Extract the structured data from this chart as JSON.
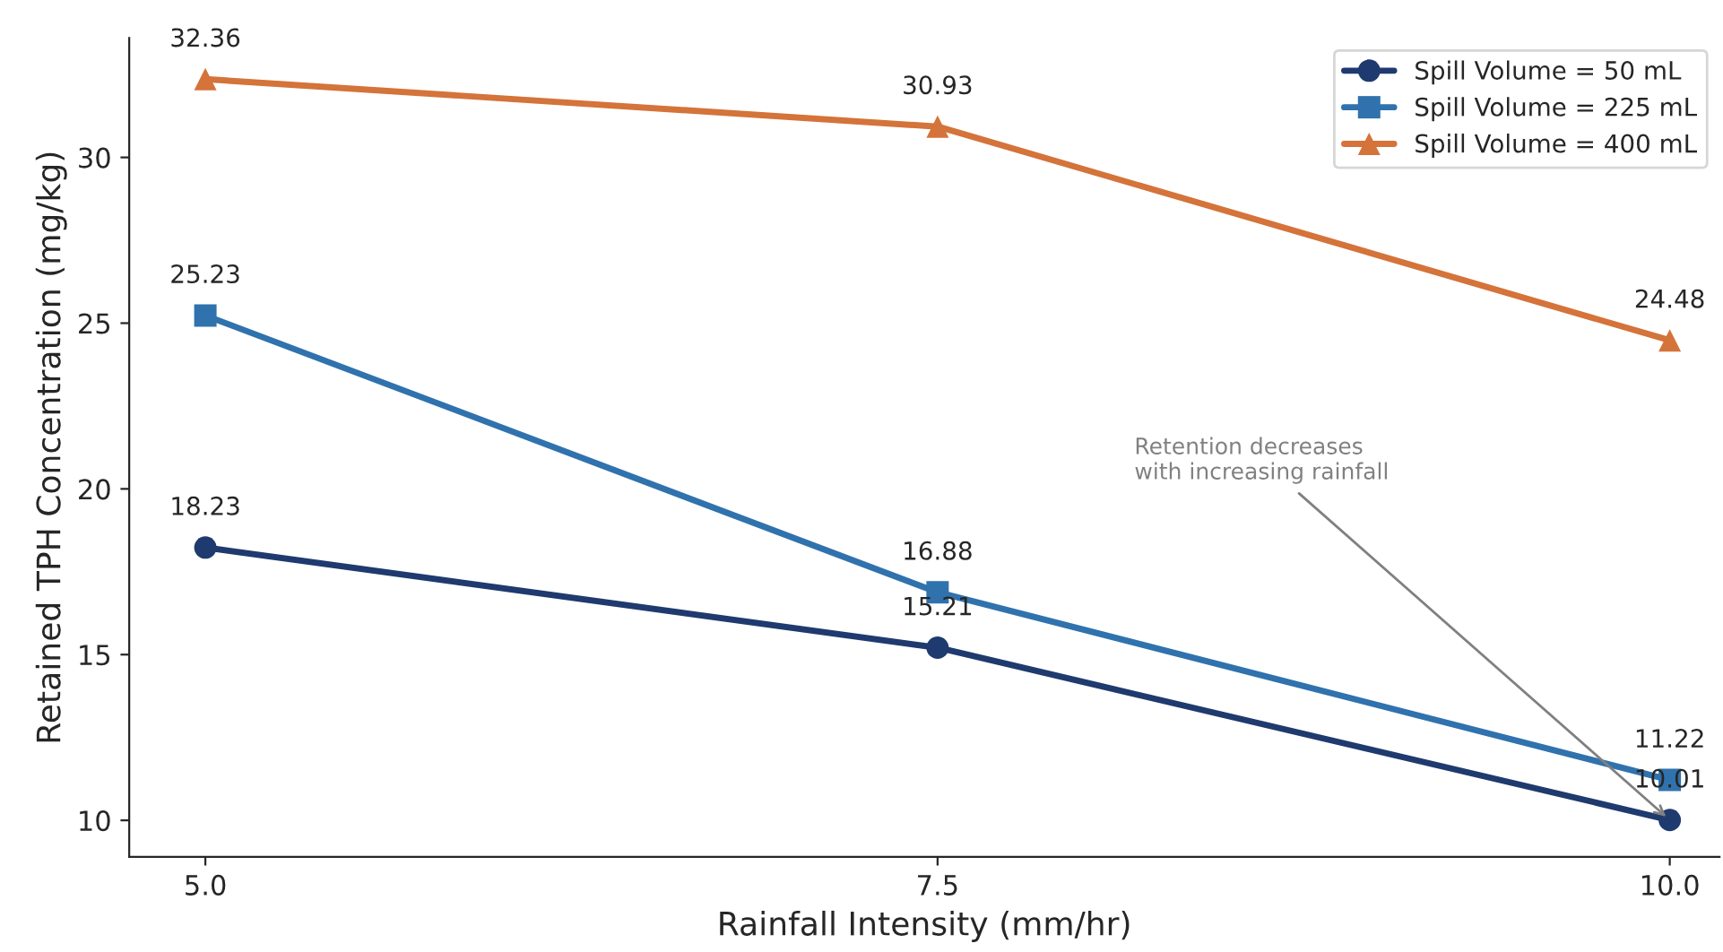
{
  "chart_data": {
    "type": "line",
    "xlabel": "Rainfall Intensity (mm/hr)",
    "ylabel": "Retained TPH Concentration (mg/kg)",
    "x": [
      5.0,
      7.5,
      10.0
    ],
    "series": [
      {
        "name": "Spill Volume = 50 mL",
        "color": "#1f3a6e",
        "marker": "circle",
        "values": [
          18.23,
          15.21,
          10.01
        ]
      },
      {
        "name": "Spill Volume = 225 mL",
        "color": "#3072ad",
        "marker": "square",
        "values": [
          25.23,
          16.88,
          11.22
        ]
      },
      {
        "name": "Spill Volume = 400 mL",
        "color": "#d4733a",
        "marker": "triangle",
        "values": [
          32.36,
          30.93,
          24.48
        ]
      }
    ],
    "xlim": [
      4.74,
      10.17
    ],
    "xticks": [
      {
        "value": 5.0,
        "label": "5.0"
      },
      {
        "value": 7.5,
        "label": "7.5"
      },
      {
        "value": 10.0,
        "label": "10.0"
      }
    ],
    "ylim": [
      8.9,
      33.6
    ],
    "yticks": [
      10,
      15,
      20,
      25,
      30
    ],
    "data_labels": true,
    "legend": "top right",
    "grid": false,
    "annotations": [
      {
        "text": "Retention decreases\nwith increasing rainfall",
        "x": 10.0,
        "y": 10.01
      }
    ]
  }
}
